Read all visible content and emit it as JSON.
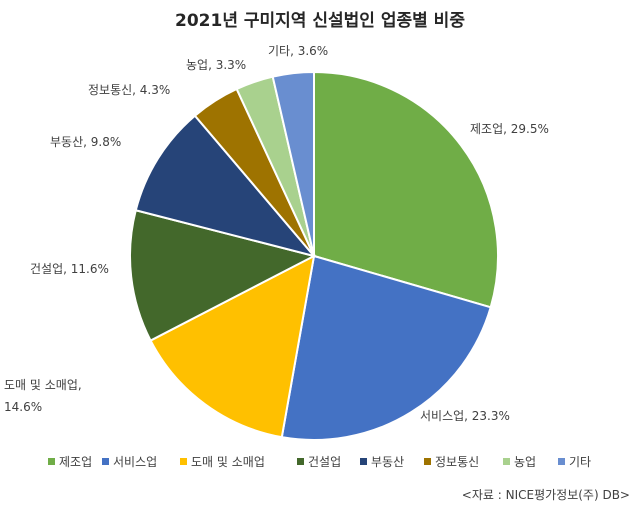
{
  "chart_data": {
    "type": "pie",
    "title": "2021년 구미지역 신설법인 업종별 비중",
    "categories": [
      "제조업",
      "서비스업",
      "도매 및 소매업",
      "건설업",
      "부동산",
      "정보통신",
      "농업",
      "기타"
    ],
    "values": [
      29.5,
      23.3,
      14.6,
      11.6,
      9.8,
      4.3,
      3.3,
      3.6
    ],
    "unit": "%",
    "data_labels": [
      [
        "제조업, 29.5%"
      ],
      [
        "서비스업, 23.3%"
      ],
      [
        "도매 및 소매업,",
        "14.6%"
      ],
      [
        "건설업, 11.6%"
      ],
      [
        "부동산, 9.8%"
      ],
      [
        "정보통신, 4.3%"
      ],
      [
        "농업, 3.3%"
      ],
      [
        "기타, 3.6%"
      ]
    ],
    "colors": [
      "#70ad47",
      "#4472c4",
      "#ffc000",
      "#43682b",
      "#264478",
      "#9e7300",
      "#a9d18e",
      "#698ed0"
    ],
    "start_angle_deg": 0,
    "direction": "clockwise",
    "legend_position": "bottom"
  },
  "source": "<자료 : NICE평가정보(주) DB>"
}
